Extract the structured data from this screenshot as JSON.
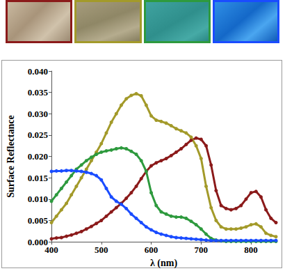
{
  "chart_data": {
    "type": "line",
    "x_label": "λ (nm)",
    "y_label": "Surface Reflectance",
    "xlim": [
      400,
      850
    ],
    "xticks": [
      400,
      500,
      600,
      700,
      800
    ],
    "ylim": [
      0,
      0.04
    ],
    "yticks": [
      {
        "value": 0,
        "label": "0.000"
      },
      {
        "value": 0.005,
        "label": "0.005"
      },
      {
        "value": 0.01,
        "label": "0.010"
      },
      {
        "value": 0.015,
        "label": "0.015"
      },
      {
        "value": 0.02,
        "label": "0.020"
      },
      {
        "value": 0.025,
        "label": "0.025"
      },
      {
        "value": 0.03,
        "label": "0.030"
      },
      {
        "value": 0.035,
        "label": "0.035"
      },
      {
        "value": 0.04,
        "label": "0.040"
      }
    ],
    "grid": false,
    "marker": "circle",
    "x": [
      400,
      410,
      420,
      430,
      440,
      450,
      460,
      470,
      480,
      490,
      500,
      510,
      520,
      530,
      540,
      550,
      560,
      570,
      580,
      590,
      600,
      610,
      620,
      630,
      640,
      650,
      660,
      670,
      680,
      690,
      700,
      710,
      720,
      730,
      740,
      750,
      760,
      770,
      780,
      790,
      800,
      810,
      820,
      830,
      840,
      850
    ],
    "series": [
      {
        "color": "#8b1a1a",
        "values": [
          0.0007,
          0.0009,
          0.001,
          0.0013,
          0.0016,
          0.002,
          0.0024,
          0.003,
          0.0036,
          0.0043,
          0.005,
          0.006,
          0.007,
          0.008,
          0.009,
          0.0102,
          0.0115,
          0.013,
          0.0148,
          0.0165,
          0.0178,
          0.0185,
          0.019,
          0.0195,
          0.0202,
          0.021,
          0.0218,
          0.0228,
          0.0238,
          0.0243,
          0.024,
          0.0225,
          0.018,
          0.012,
          0.0085,
          0.0078,
          0.0075,
          0.0078,
          0.0085,
          0.01,
          0.0115,
          0.0118,
          0.0105,
          0.0075,
          0.0055,
          0.0045
        ]
      },
      {
        "color": "#a39a2a",
        "values": [
          0.0045,
          0.006,
          0.0075,
          0.009,
          0.011,
          0.013,
          0.015,
          0.017,
          0.019,
          0.021,
          0.023,
          0.0255,
          0.028,
          0.03,
          0.032,
          0.0335,
          0.0343,
          0.0347,
          0.0342,
          0.032,
          0.0295,
          0.0285,
          0.0282,
          0.0278,
          0.0272,
          0.0265,
          0.026,
          0.0255,
          0.0245,
          0.0225,
          0.0195,
          0.013,
          0.008,
          0.005,
          0.0035,
          0.003,
          0.003,
          0.003,
          0.0032,
          0.0035,
          0.004,
          0.0042,
          0.0035,
          0.002,
          0.0015,
          0.0012
        ]
      },
      {
        "color": "#2e9a3e",
        "values": [
          0.0095,
          0.011,
          0.0125,
          0.014,
          0.0155,
          0.017,
          0.018,
          0.019,
          0.0198,
          0.0205,
          0.021,
          0.0213,
          0.0215,
          0.0218,
          0.022,
          0.0218,
          0.0212,
          0.0205,
          0.019,
          0.0165,
          0.0115,
          0.0085,
          0.007,
          0.0065,
          0.006,
          0.0058,
          0.0058,
          0.0055,
          0.0048,
          0.004,
          0.003,
          0.0018,
          0.0008,
          0.0004,
          0.0002,
          0.0001,
          0.0001,
          0.0001,
          0.0001,
          0.0001,
          0.0001,
          0.0001,
          0.0001,
          0.0001,
          0.0001,
          0.0001
        ]
      },
      {
        "color": "#1a4cff",
        "values": [
          0.0165,
          0.0166,
          0.0166,
          0.0167,
          0.0167,
          0.0166,
          0.0165,
          0.0163,
          0.016,
          0.0155,
          0.0145,
          0.0125,
          0.0105,
          0.0095,
          0.0088,
          0.0078,
          0.0065,
          0.0055,
          0.0045,
          0.0035,
          0.0028,
          0.0022,
          0.0018,
          0.0015,
          0.0012,
          0.001,
          0.0009,
          0.0008,
          0.0007,
          0.0006,
          0.0005,
          0.0004,
          0.0003,
          0.0003,
          0.0003,
          0.0003,
          0.0003,
          0.0003,
          0.0003,
          0.0003,
          0.0003,
          0.0003,
          0.0003,
          0.0003,
          0.0003,
          0.0003
        ]
      }
    ]
  }
}
